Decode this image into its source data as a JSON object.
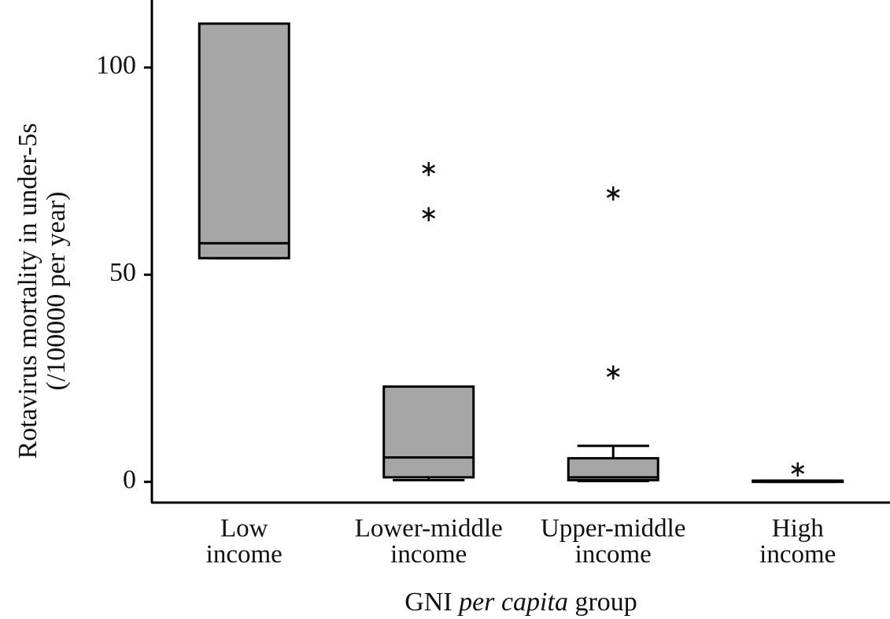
{
  "chart_data": {
    "type": "box",
    "ylabel": [
      "Rotavirus mortality in under-5s",
      "(/100000 per year)"
    ],
    "xlabel_parts": [
      "GNI",
      "per capita",
      "group"
    ],
    "categories": [
      "Low income",
      "Lower-middle income",
      "Upper-middle income",
      "High income"
    ],
    "color": "#a6a6a6",
    "boxes": [
      {
        "min": 54,
        "q1": 54,
        "median": 57.6,
        "q3": 110.6,
        "max": 110.6,
        "outliers": []
      },
      {
        "min": 0.4,
        "q1": 1.1,
        "median": 5.9,
        "q3": 23,
        "max": 23,
        "outliers": [
          75.5,
          64.6
        ]
      },
      {
        "min": 0.2,
        "q1": 0.4,
        "median": 1.1,
        "q3": 5.7,
        "max": 8.7,
        "outliers": [
          69.6,
          26.4
        ]
      },
      {
        "min": 0,
        "q1": 0,
        "median": 0.1,
        "q3": 0.3,
        "max": 0.3,
        "outliers": [
          3
        ]
      }
    ],
    "ylim": [
      -5,
      116.3
    ],
    "yticks": [
      0,
      50,
      100
    ]
  }
}
